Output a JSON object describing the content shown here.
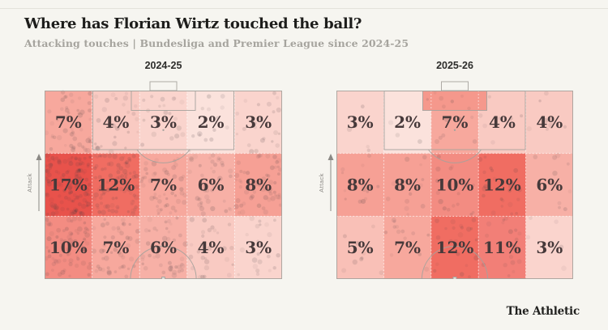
{
  "header": {
    "title": "Where has Florian Wirtz touched the ball?",
    "subtitle": "Attacking touches | Bundesliga and Premier League since 2024-25"
  },
  "ui": {
    "attack_label": "Attack"
  },
  "footer": {
    "brand": "The Athletic"
  },
  "colors": {
    "background": "#f6f5f0",
    "pitch_line": "#a5a29c",
    "grid_dotted": "#ffffff",
    "zone_label_ink": "#46393a",
    "touch_dot": "#4a3f44",
    "scale": {
      "2": "#fbe2dc",
      "3": "#fad4cd",
      "4": "#f9cac2",
      "5": "#f9c0b7",
      "6": "#f7b0a6",
      "7": "#f7a89d",
      "8": "#f6a095",
      "10": "#f38c82",
      "11": "#f27f77",
      "12": "#f06d62",
      "17": "#e8524b"
    }
  },
  "chart_data": [
    {
      "type": "heatmap",
      "title": "2024-25",
      "unit": "%",
      "orientation": "attacking half of pitch, goal at top, 3 bands (goal to halfway) x 5 lanes (left to right)",
      "values": [
        [
          7,
          4,
          3,
          2,
          3
        ],
        [
          17,
          12,
          7,
          6,
          8
        ],
        [
          10,
          7,
          6,
          4,
          3
        ]
      ],
      "labels": [
        [
          "7%",
          "4%",
          "3%",
          "2%",
          "3%"
        ],
        [
          "17%",
          "12%",
          "7%",
          "6%",
          "8%"
        ],
        [
          "10%",
          "7%",
          "6%",
          "4%",
          "3%"
        ]
      ],
      "dot_density": 7,
      "six_yard_fill": null
    },
    {
      "type": "heatmap",
      "title": "2025-26",
      "unit": "%",
      "orientation": "attacking half of pitch, goal at top, 3 bands (goal to halfway) x 5 lanes (left to right)",
      "values": [
        [
          3,
          2,
          7,
          4,
          4
        ],
        [
          8,
          8,
          10,
          12,
          6
        ],
        [
          5,
          7,
          12,
          11,
          3
        ]
      ],
      "labels": [
        [
          "3%",
          "2%",
          "7%",
          "4%",
          "4%"
        ],
        [
          "8%",
          "8%",
          "10%",
          "12%",
          "6%"
        ],
        [
          "5%",
          "7%",
          "12%",
          "11%",
          "3%"
        ]
      ],
      "dot_density": 1.8,
      "six_yard_fill": "#f5988c"
    }
  ]
}
